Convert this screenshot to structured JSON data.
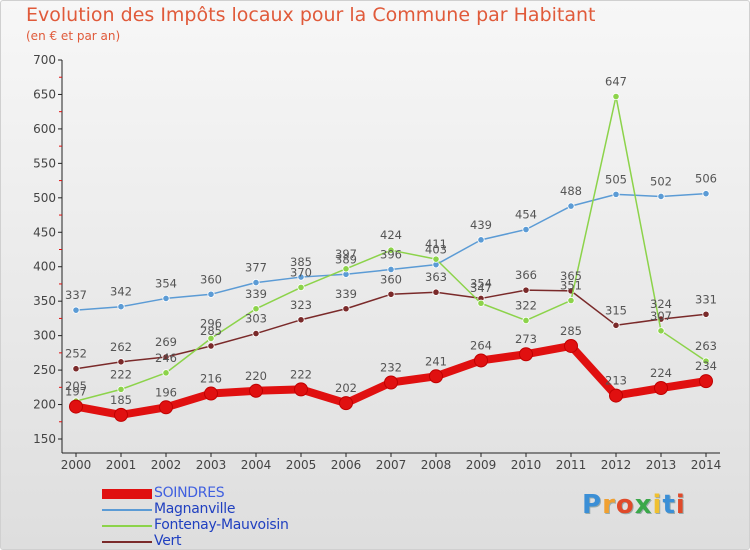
{
  "title": "Evolution des Impôts locaux pour la Commune par Habitant",
  "subtitle": "(en € et par an)",
  "logo": {
    "text": "Proxiti",
    "colors": [
      "#3b8fd6",
      "#f0a030",
      "#e04a2a",
      "#3ba84a",
      "#f0c030",
      "#3b8fd6",
      "#e04a2a"
    ]
  },
  "chart_data": {
    "type": "line",
    "title": "Evolution des Impôts locaux pour la Commune par Habitant",
    "subtitle": "(en € et par an)",
    "x": [
      "2000",
      "2001",
      "2002",
      "2003",
      "2004",
      "2005",
      "2006",
      "2007",
      "2008",
      "2009",
      "2010",
      "2011",
      "2012",
      "2013",
      "2014"
    ],
    "y_ticks": [
      "150",
      "200",
      "250",
      "300",
      "350",
      "400",
      "450",
      "500",
      "550",
      "600",
      "650",
      "700"
    ],
    "ylim": [
      150,
      700
    ],
    "grid": false,
    "legend_position": "bottom-left",
    "series": [
      {
        "name": "SOINDRES",
        "color": "#e01010",
        "values": [
          197,
          185,
          196,
          216,
          220,
          222,
          202,
          232,
          241,
          264,
          273,
          285,
          213,
          224,
          234
        ],
        "labels": [
          "197",
          "185",
          "196",
          "216",
          "220",
          "222",
          "202",
          "232",
          "241",
          "264",
          "273",
          "285",
          "213",
          "224",
          "234"
        ]
      },
      {
        "name": "Magnanville",
        "color": "#5b9bd5",
        "values": [
          337,
          342,
          354,
          360,
          377,
          385,
          389,
          396,
          403,
          439,
          454,
          488,
          505,
          502,
          506
        ],
        "labels": [
          "337",
          "342",
          "354",
          "360",
          "377",
          "385",
          "389",
          "396",
          "403",
          "439",
          "454",
          "488",
          "505",
          "502",
          "506"
        ]
      },
      {
        "name": "Fontenay-Mauvoisin",
        "color": "#8cd34a",
        "values": [
          205,
          222,
          246,
          296,
          339,
          370,
          397,
          424,
          411,
          347,
          322,
          351,
          647,
          307,
          263
        ],
        "labels": [
          "205",
          "222",
          "246",
          "296",
          "339",
          "370",
          "397",
          "424",
          "411",
          "347",
          "322",
          "351",
          "647",
          "307",
          "263"
        ]
      },
      {
        "name": "Vert",
        "color": "#7a2a2a",
        "values": [
          252,
          262,
          269,
          285,
          303,
          323,
          339,
          360,
          363,
          354,
          366,
          365,
          315,
          324,
          331
        ],
        "labels": [
          "252",
          "262",
          "269",
          "285",
          "303",
          "323",
          "339",
          "360",
          "363",
          "354",
          "366",
          "365",
          "315",
          "324",
          "331"
        ]
      }
    ]
  }
}
